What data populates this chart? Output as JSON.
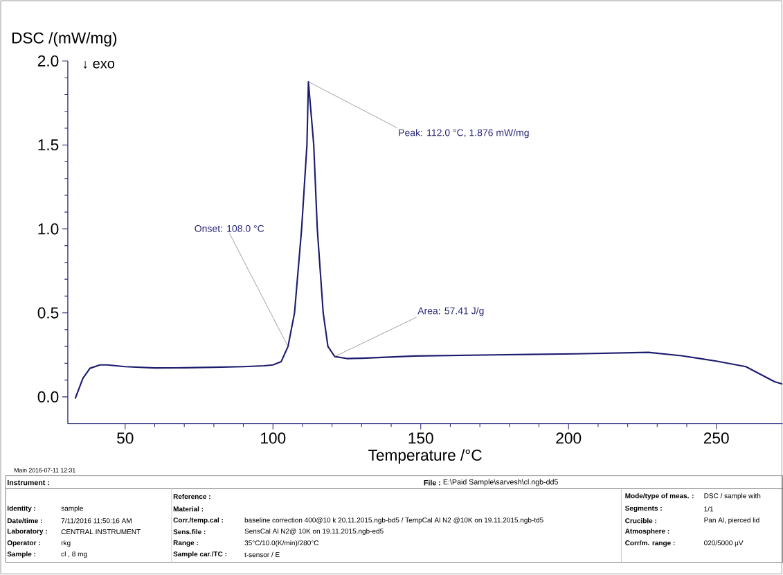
{
  "chart_data": {
    "type": "line",
    "xlabel": "Temperature /°C",
    "ylabel": "DSC /(mW/mg)",
    "x": [
      33.1,
      35.7,
      38.1,
      41.5,
      44,
      50,
      60,
      70,
      80,
      90,
      97,
      100,
      102.8,
      105.1,
      107.3,
      109.7,
      111.5,
      112,
      113.8,
      115,
      117,
      118.6,
      120.9,
      125,
      130,
      148,
      175,
      202.5,
      227,
      238.2,
      250,
      260,
      269.7,
      272.3
    ],
    "series": [
      {
        "color": "#1c1c6e",
        "values": [
          -0.01,
          0.11,
          0.17,
          0.19,
          0.19,
          0.18,
          0.172,
          0.173,
          0.176,
          0.18,
          0.185,
          0.19,
          0.21,
          0.3,
          0.5,
          1.0,
          1.5,
          1.876,
          1.5,
          1.0,
          0.5,
          0.3,
          0.24,
          0.228,
          0.23,
          0.243,
          0.25,
          0.256,
          0.265,
          0.245,
          0.213,
          0.18,
          0.09,
          0.077
        ]
      }
    ],
    "xlim": [
      30.6,
      272.4
    ],
    "ylim": [
      -0.16,
      2.0
    ],
    "xticks": [
      50,
      100,
      150,
      200,
      250
    ],
    "yticks": [
      {
        "value": 0,
        "label": "0.0"
      },
      {
        "value": 0.5,
        "label": "0.5"
      },
      {
        "value": 1,
        "label": "1.0"
      },
      {
        "value": 1.5,
        "label": "1.5"
      },
      {
        "value": 2,
        "label": "2.0"
      }
    ],
    "annotations": [
      "↓ exo",
      {
        "text": "Peak: 112.0 °C, 1.876 mW/mg",
        "x": 112,
        "y": 1.876
      },
      {
        "text": "Onset: 108.0 °C",
        "x": 105.1,
        "y": 0.3
      },
      {
        "text": "Area: 57.41 J/g",
        "x": 120.9,
        "y": 0.24
      },
      "Main 2016-07-11 12:31",
      "Instrument :",
      "File :",
      "E:\\Paid Sample\\sarvesh\\cl.ngb-dd5",
      "Identity :",
      "sample",
      "Date/time :",
      "7/11/2016 11:50:16 AM",
      "Laboratory :",
      "CENTRAL INSTRUMENT",
      "Operator :",
      "rkg",
      "Sample :",
      "cl , 8 mg",
      "Reference :",
      "Material :",
      "Corr./temp.cal :",
      "baseline correction 400@10 k 20.11.2015.ngb-bd5 / TempCal Al N2 @10K on 19.11.2015.ngb-td5",
      "Sens.file :",
      "SensCal Al N2@ 10K on 19.11.2015.ngb-ed5",
      "Range :",
      "35°C/10.0(K/min)/280°C",
      "Sample car./TC :",
      "t-sensor / E",
      "Mode/type of meas. :",
      "DSC / sample with",
      "Segments :",
      "1/1",
      "Crucible :",
      "Pan Al, pierced lid",
      "Atmosphere :",
      "Corr/m. range :",
      "020/5000 µV"
    ]
  }
}
